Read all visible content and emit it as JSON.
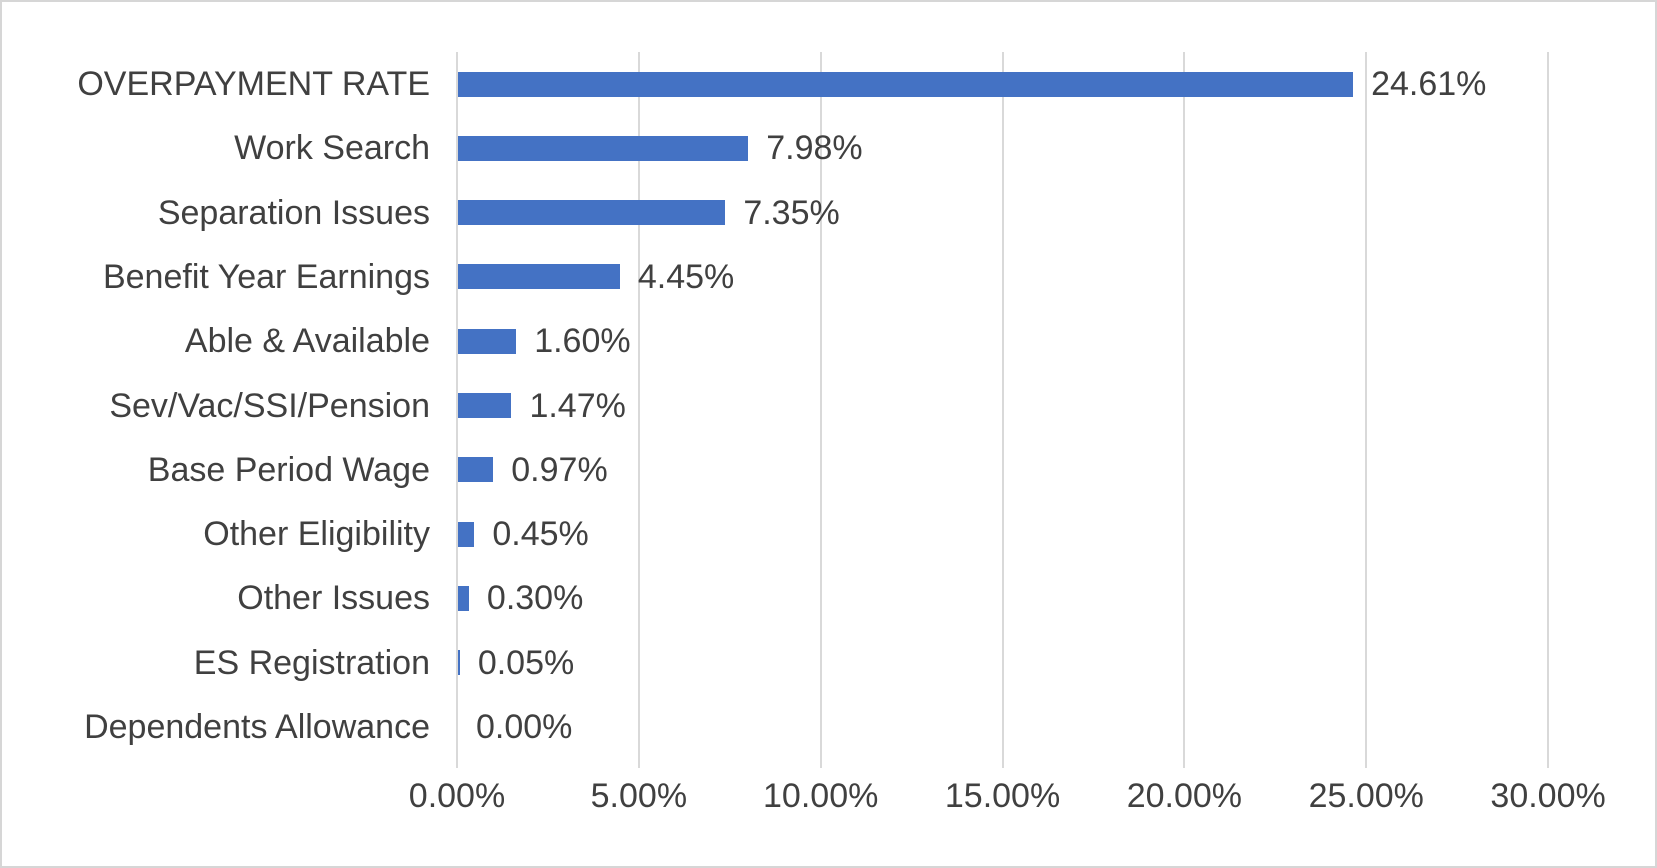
{
  "chart_data": {
    "type": "bar",
    "orientation": "horizontal",
    "title": "",
    "xlabel": "",
    "ylabel": "",
    "categories": [
      "OVERPAYMENT RATE",
      "Work Search",
      "Separation Issues",
      "Benefit Year Earnings",
      "Able & Available",
      "Sev/Vac/SSI/Pension",
      "Base Period Wage",
      "Other Eligibility",
      "Other Issues",
      "ES Registration",
      "Dependents Allowance"
    ],
    "values": [
      24.61,
      7.98,
      7.35,
      4.45,
      1.6,
      1.47,
      0.97,
      0.45,
      0.3,
      0.05,
      0.0
    ],
    "data_labels": [
      "24.61%",
      "7.98%",
      "7.35%",
      "4.45%",
      "1.60%",
      "1.47%",
      "0.97%",
      "0.45%",
      "0.30%",
      "0.05%",
      "0.00%"
    ],
    "x_axis": {
      "min": 0,
      "max": 30,
      "tick_values": [
        0,
        5,
        10,
        15,
        20,
        25,
        30
      ],
      "tick_labels": [
        "0.00%",
        "5.00%",
        "10.00%",
        "15.00%",
        "20.00%",
        "25.00%",
        "30.00%"
      ]
    },
    "grid": "vertical-only",
    "legend": "none",
    "colors": {
      "bar": "#4472C4",
      "gridline": "#D9D9D9",
      "text": "#404040",
      "background": "#FFFFFF",
      "frame_border": "#D6D6D6"
    }
  }
}
